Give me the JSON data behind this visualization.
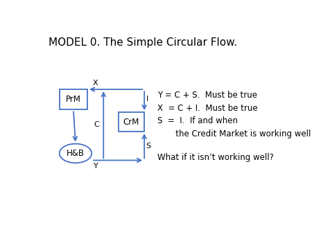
{
  "title": "MODEL 0. The Simple Circular Flow.",
  "bg_color": "#ffffff",
  "box_color": "#4472c4",
  "text_color": "#000000",
  "equations": [
    "Y = C + S.  Must be true",
    "X  = C + I.  Must be true",
    "S  =  I.  If and when",
    "       the Credit Market is working well"
  ],
  "what_if": "What if it isn’t working well?"
}
